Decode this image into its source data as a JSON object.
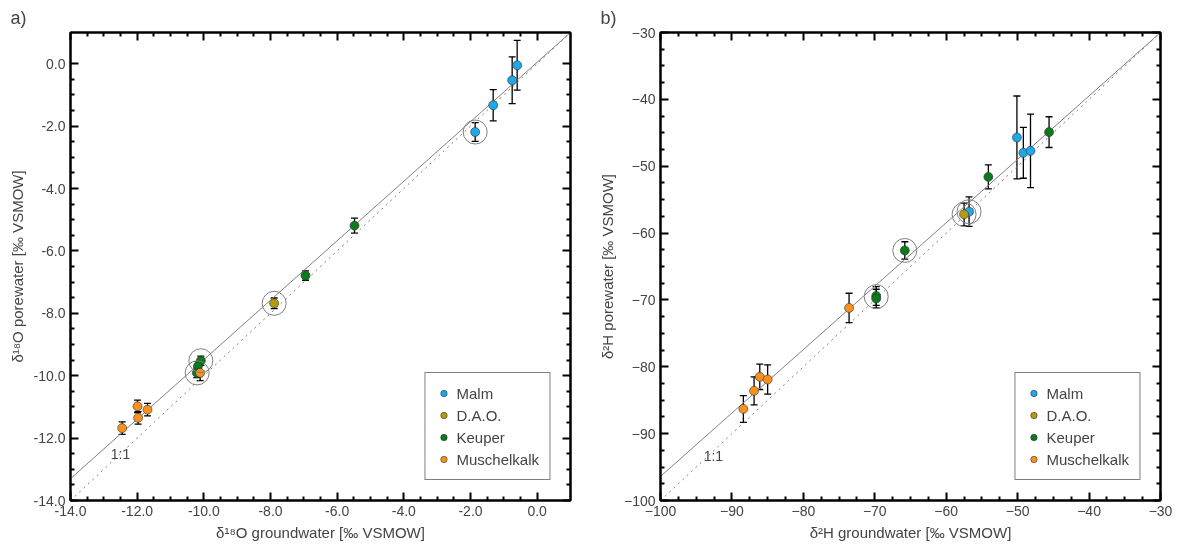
{
  "chart_data": [
    {
      "type": "scatter",
      "title": "a)",
      "xlabel": "δ¹⁸O groundwater [‰ VSMOW]",
      "ylabel": "δ¹⁸O porewater [‰ VSMOW]",
      "marker": "circle",
      "legend": "bottom right",
      "grid": false,
      "xlim": [
        -14,
        1
      ],
      "ylim": [
        -14,
        1
      ],
      "xticks": [
        {
          "value": -14,
          "label": "-14.0"
        },
        {
          "value": -12,
          "label": "-12.0"
        },
        {
          "value": -10,
          "label": "-10.0"
        },
        {
          "value": -8,
          "label": "-8.0"
        },
        {
          "value": -6,
          "label": "-6.0"
        },
        {
          "value": -4,
          "label": "-4.0"
        },
        {
          "value": -2,
          "label": "-2.0"
        },
        {
          "value": 0,
          "label": "0.0"
        }
      ],
      "yticks": [
        {
          "value": -14,
          "label": "-14.0"
        },
        {
          "value": -12,
          "label": "-12.0"
        },
        {
          "value": -10,
          "label": "-10.0"
        },
        {
          "value": -8,
          "label": "-8.0"
        },
        {
          "value": -6,
          "label": "-6.0"
        },
        {
          "value": -4,
          "label": "-4.0"
        },
        {
          "value": -2,
          "label": "-2.0"
        },
        {
          "value": 0,
          "label": "0.0"
        }
      ],
      "annotations": [
        {
          "text": "1:1",
          "x": -12.5,
          "y": -12.5
        }
      ],
      "series": [
        {
          "type": "line",
          "marker": "none",
          "line_style": "solid",
          "color": "#808080",
          "x": [
            -14,
            1
          ],
          "values": [
            -13.3,
            1.0
          ]
        },
        {
          "type": "line",
          "marker": "none",
          "line_style": "dotted",
          "color": "#808080",
          "x": [
            -14,
            1
          ],
          "values": [
            -14,
            1
          ]
        },
        {
          "name": "Malm",
          "color": "#1ea8e8",
          "x": [
            -0.6,
            -0.75,
            -1.32,
            -1.86
          ],
          "values": [
            -0.05,
            -0.53,
            -1.33,
            -2.19
          ],
          "errors": [
            0.8,
            0.75,
            0.5,
            0.3
          ]
        },
        {
          "name": "D.A.O.",
          "color": "#b59a10",
          "x": [
            -7.89
          ],
          "values": [
            -7.68
          ],
          "errors": [
            0.17
          ]
        },
        {
          "name": "Keuper",
          "color": "#0a7a1a",
          "x": [
            -5.48,
            -6.95,
            -10.09,
            -10.18,
            -10.21
          ],
          "values": [
            -5.19,
            -6.79,
            -9.52,
            -9.7,
            -9.91
          ],
          "errors": [
            0.24,
            0.15,
            0.15,
            0.15,
            0.15
          ]
        },
        {
          "name": "Muschelkalk",
          "color": "#f7901e",
          "x": [
            -10.11,
            -11.99,
            -11.69,
            -11.97,
            -12.45
          ],
          "values": [
            -9.91,
            -10.98,
            -11.09,
            -11.35,
            -11.68
          ],
          "errors": [
            0.25,
            0.2,
            0.2,
            0.2,
            0.2
          ]
        },
        {
          "type": "scatter",
          "color": "#808080",
          "x": [
            -1.86,
            -7.89,
            -10.09,
            -10.2
          ],
          "values": [
            -2.19,
            -7.68,
            -9.52,
            -9.91
          ]
        }
      ]
    },
    {
      "type": "scatter",
      "title": "b)",
      "xlabel": "δ²H groundwater [‰ VSMOW]",
      "ylabel": "δ²H porewater [‰ VSMOW]",
      "marker": "circle",
      "legend": "bottom right",
      "grid": false,
      "xlim": [
        -100,
        -30
      ],
      "ylim": [
        -100,
        -30
      ],
      "xticks": [
        -100,
        -90,
        -80,
        -70,
        -60,
        -50,
        -40,
        -30
      ],
      "yticks": [
        -100,
        -90,
        -80,
        -70,
        -60,
        -50,
        -40,
        -30
      ],
      "annotations": [
        {
          "text": "1:1",
          "x": -92.6,
          "y": -93.3
        }
      ],
      "series": [
        {
          "type": "line",
          "marker": "none",
          "line_style": "solid",
          "color": "#808080",
          "x": [
            -100,
            -30
          ],
          "values": [
            -96.4,
            -30
          ]
        },
        {
          "type": "line",
          "marker": "none",
          "line_style": "dotted",
          "color": "#808080",
          "x": [
            -100,
            -30
          ],
          "values": [
            -100,
            -30
          ]
        },
        {
          "name": "Malm",
          "color": "#1ea8e8",
          "x": [
            -50.1,
            -49.2,
            -48.2,
            -56.8
          ],
          "values": [
            -45.7,
            -48.0,
            -47.7,
            -56.8
          ],
          "errors": [
            6.2,
            3.8,
            5.5,
            2.2
          ]
        },
        {
          "name": "D.A.O.",
          "color": "#b59a10",
          "x": [
            -57.5
          ],
          "values": [
            -57.2
          ],
          "errors": [
            1.7
          ]
        },
        {
          "name": "Keuper",
          "color": "#0a7a1a",
          "x": [
            -45.6,
            -54.1,
            -65.8,
            -69.8,
            -69.8
          ],
          "values": [
            -44.9,
            -51.6,
            -62.6,
            -69.4,
            -69.8
          ],
          "errors": [
            2.3,
            1.8,
            1.3,
            1.4,
            1.4
          ]
        },
        {
          "name": "Muschelkalk",
          "color": "#f7901e",
          "x": [
            -73.6,
            -86.1,
            -85.0,
            -86.9,
            -88.4
          ],
          "values": [
            -71.2,
            -81.5,
            -81.9,
            -83.6,
            -86.3
          ],
          "errors": [
            2.2,
            1.9,
            2.2,
            2.1,
            2.0
          ]
        },
        {
          "type": "scatter",
          "color": "#808080",
          "x": [
            -56.8,
            -57.5,
            -65.8,
            -69.8
          ],
          "values": [
            -56.8,
            -57.2,
            -62.6,
            -69.5
          ]
        }
      ]
    }
  ]
}
